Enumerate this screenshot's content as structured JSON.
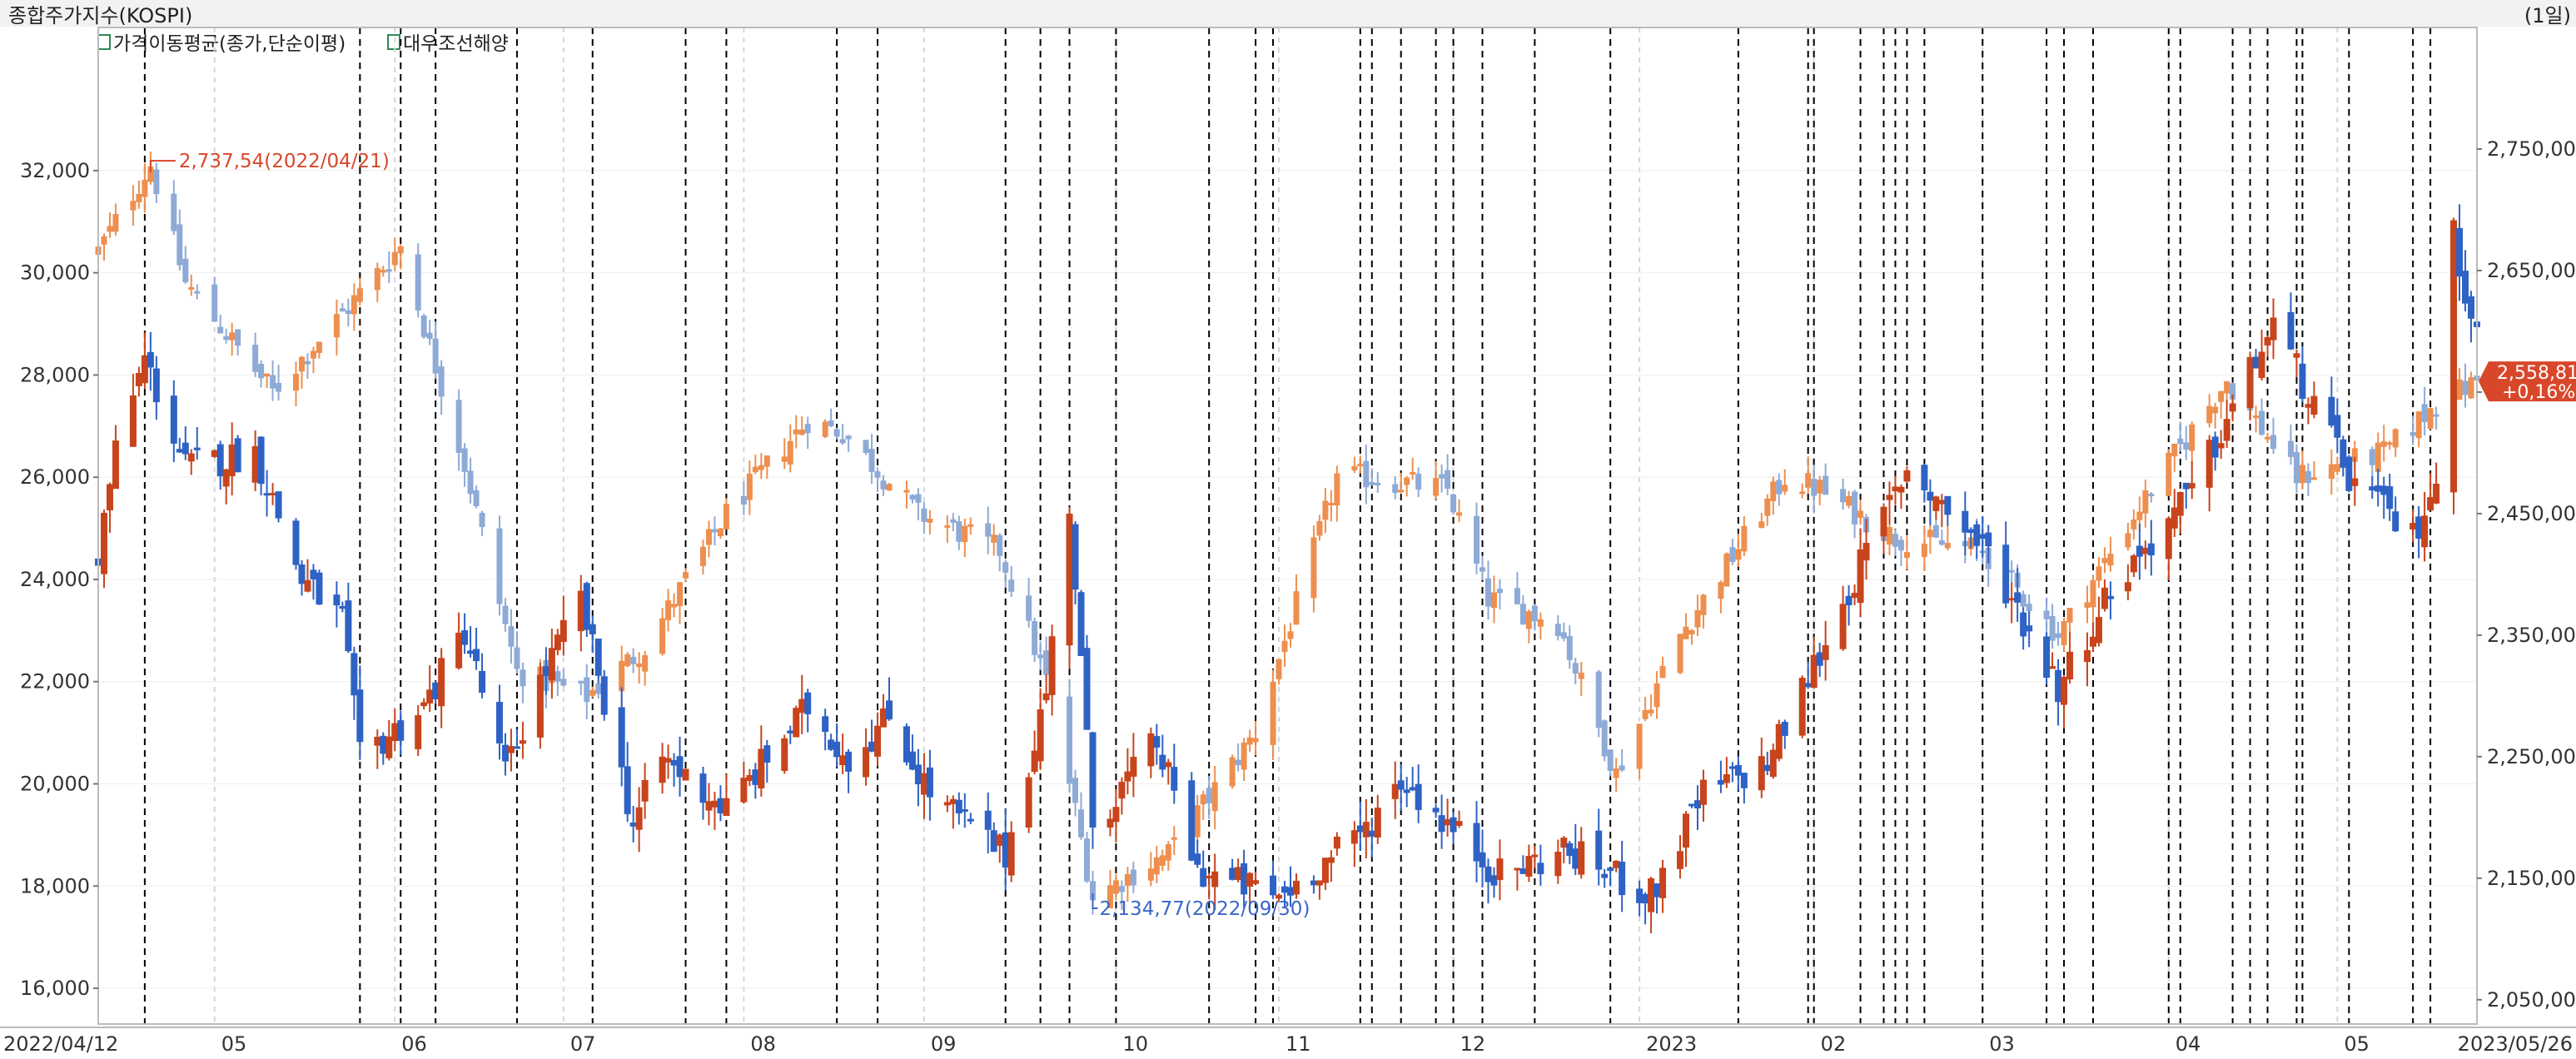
{
  "header": {
    "title": "종합주가지수(KOSPI)",
    "period": "(1일)",
    "legend": [
      {
        "label": "가격이동평균(종가,단순이평)",
        "icon": "checkbox-icon",
        "color": "#2e8b57"
      },
      {
        "label": "대우조선해양",
        "icon": "checkbox-icon",
        "color": "#2e8b57"
      }
    ]
  },
  "colors": {
    "up_solid": "#c8441c",
    "down_solid": "#2e62c4",
    "up_light": "#ee8f4f",
    "down_light": "#8eaad6",
    "badge_bg": "#d9472b",
    "grid": "#000000",
    "axis_text": "#333333"
  },
  "chart_data": {
    "type": "candlestick",
    "x_range": [
      "2022/04/12",
      "2023/05/26"
    ],
    "x_start_label": "2022/04/12",
    "x_end_label": "2023/05/26",
    "month_labels": [
      "05",
      "06",
      "07",
      "08",
      "09",
      "10",
      "11",
      "12",
      "2023",
      "02",
      "03",
      "04",
      "05"
    ],
    "left_axis": {
      "series": "대우조선해양",
      "ticks": [
        "32,000",
        "30,000",
        "28,000",
        "26,000",
        "24,000",
        "22,000",
        "20,000",
        "18,000",
        "16,000"
      ],
      "tick_values": [
        32000,
        30000,
        28000,
        26000,
        24000,
        22000,
        20000,
        18000,
        16000
      ],
      "range": [
        15300,
        34800
      ]
    },
    "right_axis": {
      "series": "종합주가지수(KOSPI)",
      "ticks": [
        "2,750,00",
        "2,650,00",
        "2,550,00",
        "2,450,00",
        "2,350,00",
        "2,250,00",
        "2,150,00",
        "2,050,00"
      ],
      "tick_values": [
        2750,
        2650,
        2550,
        2450,
        2350,
        2250,
        2150,
        2050
      ],
      "range": [
        2030,
        2850
      ]
    },
    "annotations": {
      "high": {
        "label": "2,737,54(2022/04/21)",
        "date": "2022/04/21",
        "value": 2737.54
      },
      "low": {
        "label": "2,134,77(2022/09/30)",
        "date": "2022/09/30",
        "value": 2134.77
      }
    },
    "last_badge": {
      "value": "2,558,81",
      "change": "+0,16%",
      "numeric": 2558.81
    },
    "series": [
      {
        "name": "종합주가지수(KOSPI)",
        "axis": "right",
        "style": "solid",
        "anchors": [
          [
            "2022/04/12",
            2666
          ],
          [
            "2022/04/21",
            2737
          ],
          [
            "2022/04/27",
            2640
          ],
          [
            "2022/05/12",
            2550
          ],
          [
            "2022/05/25",
            2620
          ],
          [
            "2022/06/03",
            2670
          ],
          [
            "2022/06/14",
            2490
          ],
          [
            "2022/06/23",
            2320
          ],
          [
            "2022/07/05",
            2300
          ],
          [
            "2022/07/15",
            2340
          ],
          [
            "2022/07/29",
            2450
          ],
          [
            "2022/08/12",
            2527
          ],
          [
            "2022/08/18",
            2517
          ],
          [
            "2022/08/31",
            2450
          ],
          [
            "2022/09/14",
            2420
          ],
          [
            "2022/09/23",
            2300
          ],
          [
            "2022/09/30",
            2135
          ],
          [
            "2022/10/13",
            2170
          ],
          [
            "2022/10/28",
            2270
          ],
          [
            "2022/11/11",
            2480
          ],
          [
            "2022/11/16",
            2480
          ],
          [
            "2022/11/30",
            2470
          ],
          [
            "2022/12/07",
            2380
          ],
          [
            "2022/12/19",
            2360
          ],
          [
            "2022/12/29",
            2236
          ],
          [
            "2023/01/09",
            2350
          ],
          [
            "2023/01/27",
            2480
          ],
          [
            "2023/02/02",
            2470
          ],
          [
            "2023/02/15",
            2430
          ],
          [
            "2023/03/02",
            2420
          ],
          [
            "2023/03/15",
            2350
          ],
          [
            "2023/03/31",
            2470
          ],
          [
            "2023/04/13",
            2560
          ],
          [
            "2023/04/25",
            2480
          ],
          [
            "2023/05/10",
            2500
          ],
          [
            "2023/05/19",
            2540
          ],
          [
            "2023/05/26",
            2559
          ]
        ]
      },
      {
        "name": "대우조선해양",
        "axis": "left",
        "style": "bold",
        "anchors": [
          [
            "2022/04/12",
            24500
          ],
          [
            "2022/04/15",
            26500
          ],
          [
            "2022/04/20",
            28300
          ],
          [
            "2022/04/27",
            26200
          ],
          [
            "2022/05/09",
            26500
          ],
          [
            "2022/05/17",
            24000
          ],
          [
            "2022/05/24",
            23200
          ],
          [
            "2022/05/27",
            20500
          ],
          [
            "2022/06/07",
            21500
          ],
          [
            "2022/06/14",
            23000
          ],
          [
            "2022/06/21",
            20200
          ],
          [
            "2022/06/27",
            22000
          ],
          [
            "2022/07/04",
            23600
          ],
          [
            "2022/07/13",
            19200
          ],
          [
            "2022/07/18",
            20500
          ],
          [
            "2022/07/29",
            19500
          ],
          [
            "2022/08/05",
            20500
          ],
          [
            "2022/08/12",
            21500
          ],
          [
            "2022/08/19",
            20500
          ],
          [
            "2022/08/26",
            21300
          ],
          [
            "2022/09/02",
            19800
          ],
          [
            "2022/09/15",
            18600
          ],
          [
            "2022/09/22",
            21800
          ],
          [
            "2022/09/26",
            25500
          ],
          [
            "2022/09/30",
            19200
          ],
          [
            "2022/10/11",
            20800
          ],
          [
            "2022/10/18",
            18300
          ],
          [
            "2022/11/01",
            17800
          ],
          [
            "2022/11/15",
            19000
          ],
          [
            "2022/11/22",
            20100
          ],
          [
            "2022/12/09",
            18200
          ],
          [
            "2022/12/20",
            18700
          ],
          [
            "2022/12/29",
            18200
          ],
          [
            "2023/01/04",
            17800
          ],
          [
            "2023/01/13",
            19800
          ],
          [
            "2023/01/24",
            20400
          ],
          [
            "2023/02/03",
            22800
          ],
          [
            "2023/02/17",
            26200
          ],
          [
            "2023/03/03",
            24500
          ],
          [
            "2023/03/15",
            21900
          ],
          [
            "2023/03/24",
            23800
          ],
          [
            "2023/04/07",
            25700
          ],
          [
            "2023/04/21",
            29000
          ],
          [
            "2023/05/04",
            26000
          ],
          [
            "2023/05/15",
            24800
          ],
          [
            "2023/05/19",
            26000
          ],
          [
            "2023/05/22",
            30700
          ],
          [
            "2023/05/26",
            28800
          ]
        ]
      }
    ],
    "event_dates": [
      "2022/04/20",
      "2022/05/27",
      "2022/06/03",
      "2022/06/09",
      "2022/06/23",
      "2022/07/06",
      "2022/07/22",
      "2022/07/29",
      "2022/08/17",
      "2022/08/24",
      "2022/09/15",
      "2022/09/21",
      "2022/09/26",
      "2022/10/04",
      "2022/10/20",
      "2022/10/28",
      "2022/10/31",
      "2022/11/15",
      "2022/11/17",
      "2022/11/22",
      "2022/11/28",
      "2022/12/01",
      "2022/12/06",
      "2022/12/15",
      "2022/12/28",
      "2023/01/19",
      "2023/01/31",
      "2023/02/01",
      "2023/02/09",
      "2023/02/13",
      "2023/02/15",
      "2023/02/17",
      "2023/02/20",
      "2023/03/02",
      "2023/03/13",
      "2023/03/16",
      "2023/03/21",
      "2023/04/03",
      "2023/04/05",
      "2023/04/14",
      "2023/04/17",
      "2023/04/20",
      "2023/04/25",
      "2023/04/26",
      "2023/05/04",
      "2023/05/15",
      "2023/05/18",
      "2023/05/26"
    ]
  }
}
